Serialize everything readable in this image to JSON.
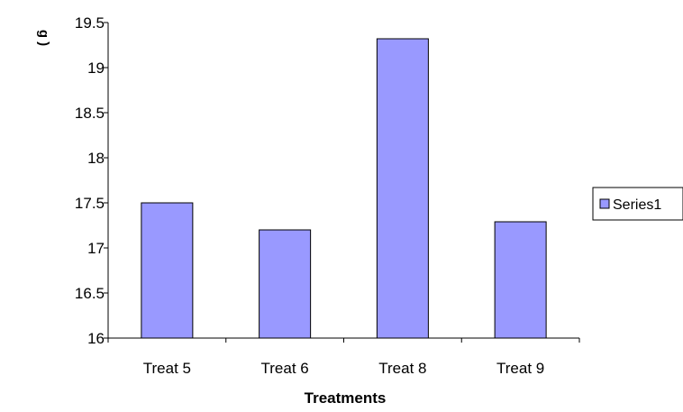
{
  "chart_data": {
    "type": "bar",
    "title": "",
    "xlabel": "Treatments",
    "ylabel": "g )",
    "categories": [
      "Treat 5",
      "Treat 6",
      "Treat 8",
      "Treat 9"
    ],
    "series": [
      {
        "name": "Series1",
        "values": [
          17.5,
          17.2,
          19.32,
          17.29
        ],
        "color": "#9999ff"
      }
    ],
    "ylim": [
      16,
      19.5
    ],
    "yticks": [
      "16",
      "16.5",
      "17",
      "17.5",
      "18",
      "18.5",
      "19",
      "19.5"
    ],
    "grid": false,
    "legend_position": "right",
    "bar_edge_color": "#000000"
  }
}
